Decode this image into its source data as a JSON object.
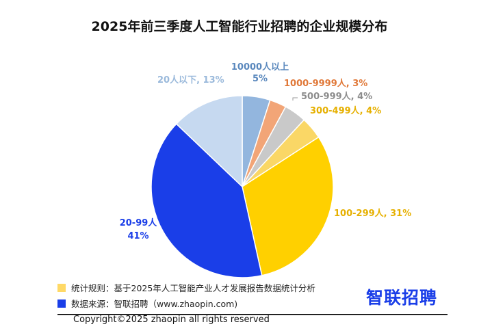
{
  "chart_data": {
    "type": "pie",
    "title": "2025年前三季度人工智能行业招聘的企业规模分布",
    "slices": [
      {
        "label": "10000人以上",
        "value": 5,
        "text": "10000人以上",
        "pct": "5%",
        "color": "#93b6de",
        "label_color": "#5a88bd"
      },
      {
        "label": "1000-9999人",
        "value": 3,
        "text": "1000-9999人, 3%",
        "color": "#f2a577",
        "label_color": "#e07838"
      },
      {
        "label": "500-999人",
        "value": 4,
        "text": "500-999人, 4%",
        "color": "#c9c9c9",
        "label_color": "#8c8c8c"
      },
      {
        "label": "300-499人",
        "value": 4,
        "text": "300-499人, 4%",
        "color": "#fad766",
        "label_color": "#e6b000"
      },
      {
        "label": "100-299人",
        "value": 31,
        "text": "100-299人, 31%",
        "color": "#ffd000",
        "label_color": "#e6b000"
      },
      {
        "label": "20-99人",
        "value": 41,
        "text": "20-99人",
        "pct": "41%",
        "color": "#1a3ee8",
        "label_color": "#1a3ee8"
      },
      {
        "label": "20人以下",
        "value": 13,
        "text": "20人以下, 13%",
        "color": "#c6d9f0",
        "label_color": "#9ab9db"
      }
    ]
  },
  "legend": [
    {
      "text": "统计规则：基于2025年人工智能产业人才发展报告数据统计分析",
      "color": "#ffd966"
    },
    {
      "text": "数据来源：智联招聘（www.zhaopin.com)",
      "color": "#1a3ee8"
    }
  ],
  "logo": "智联招聘",
  "watermark": "智联招聘",
  "copyright": "Copyright©2025 zhaopin all rights reserved"
}
